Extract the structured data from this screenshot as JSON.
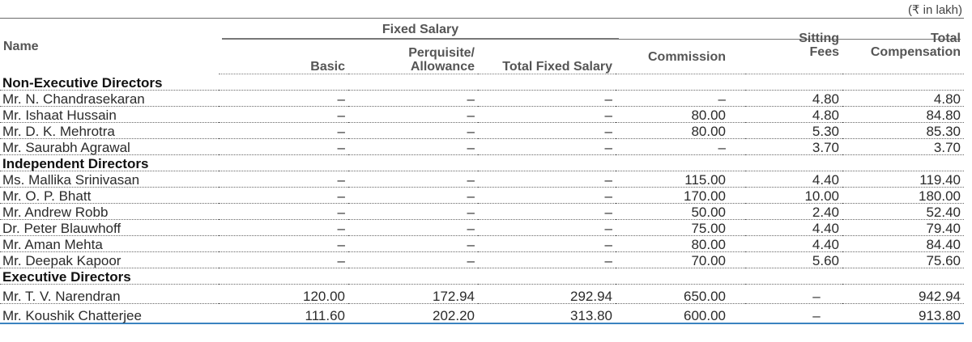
{
  "unit": "(₹ in lakh)",
  "headers": {
    "name": "Name",
    "group": "Fixed Salary",
    "basic": "Basic",
    "perq": "Perquisite/ Allowance",
    "perq_line1": "Perquisite/",
    "perq_line2": "Allowance",
    "total_fixed": "Total Fixed Salary",
    "commission": "Commission",
    "sitting_line1": "Sitting",
    "sitting_line2": "Fees",
    "total_line1": "Total",
    "total_line2": "Compensation"
  },
  "sections": [
    {
      "title": "Non-Executive Directors",
      "rows": [
        {
          "name": "Mr. N. Chandrasekaran",
          "basic": "–",
          "perq": "–",
          "total_fixed": "–",
          "commission": "–",
          "sitting": "4.80",
          "total": "4.80"
        },
        {
          "name": "Mr. Ishaat Hussain",
          "basic": "–",
          "perq": "–",
          "total_fixed": "–",
          "commission": "80.00",
          "sitting": "4.80",
          "total": "84.80"
        },
        {
          "name": "Mr. D. K. Mehrotra",
          "basic": "–",
          "perq": "–",
          "total_fixed": "–",
          "commission": "80.00",
          "sitting": "5.30",
          "total": "85.30"
        },
        {
          "name": "Mr. Saurabh Agrawal",
          "basic": "–",
          "perq": "–",
          "total_fixed": "–",
          "commission": "–",
          "sitting": "3.70",
          "total": "3.70"
        }
      ]
    },
    {
      "title": "Independent Directors",
      "rows": [
        {
          "name": "Ms. Mallika Srinivasan",
          "basic": "–",
          "perq": "–",
          "total_fixed": "–",
          "commission": "115.00",
          "sitting": "4.40",
          "total": "119.40"
        },
        {
          "name": "Mr. O. P. Bhatt",
          "basic": "–",
          "perq": "–",
          "total_fixed": "–",
          "commission": "170.00",
          "sitting": "10.00",
          "total": "180.00"
        },
        {
          "name": "Mr. Andrew Robb",
          "basic": "–",
          "perq": "–",
          "total_fixed": "–",
          "commission": "50.00",
          "sitting": "2.40",
          "total": "52.40"
        },
        {
          "name": "Dr. Peter Blauwhoff",
          "basic": "–",
          "perq": "–",
          "total_fixed": "–",
          "commission": "75.00",
          "sitting": "4.40",
          "total": "79.40"
        },
        {
          "name": "Mr. Aman Mehta",
          "basic": "–",
          "perq": "–",
          "total_fixed": "–",
          "commission": "80.00",
          "sitting": "4.40",
          "total": "84.40"
        },
        {
          "name": "Mr. Deepak Kapoor",
          "basic": "–",
          "perq": "–",
          "total_fixed": "–",
          "commission": "70.00",
          "sitting": "5.60",
          "total": "75.60"
        }
      ]
    },
    {
      "title": "Executive Directors",
      "rows": [
        {
          "name": "Mr. T. V. Narendran",
          "basic": "120.00",
          "perq": "172.94",
          "total_fixed": "292.94",
          "commission": "650.00",
          "sitting": "–",
          "total": "942.94"
        },
        {
          "name": "Mr. Koushik Chatterjee",
          "basic": "111.60",
          "perq": "202.20",
          "total_fixed": "313.80",
          "commission": "600.00",
          "sitting": "–",
          "total": "913.80"
        }
      ]
    }
  ]
}
